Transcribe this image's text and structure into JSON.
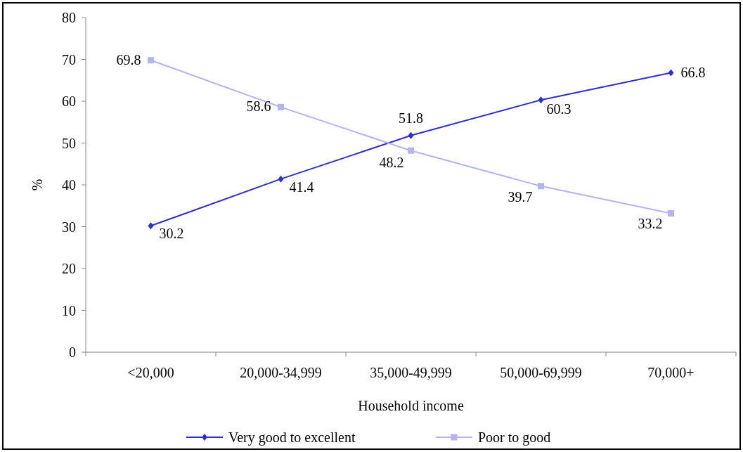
{
  "chart_data": {
    "type": "line",
    "xlabel": "Household income",
    "ylabel": "%",
    "categories": [
      "<20,000",
      "20,000-34,999",
      "35,000-49,999",
      "50,000-69,999",
      "70,000+"
    ],
    "series": [
      {
        "name": "Very good to excellent",
        "color": "#2f2fd0",
        "marker": "diamond",
        "values": [
          30.2,
          41.4,
          51.8,
          60.3,
          66.8
        ]
      },
      {
        "name": "Poor to good",
        "color": "#b4b4f2",
        "marker": "square",
        "values": [
          69.8,
          58.6,
          48.2,
          39.7,
          33.2
        ]
      }
    ],
    "ylim": [
      0,
      80
    ],
    "yticks": [
      0,
      10,
      20,
      30,
      40,
      50,
      60,
      70,
      80
    ],
    "data_labels": true,
    "legend": "bottom",
    "grid": false
  }
}
